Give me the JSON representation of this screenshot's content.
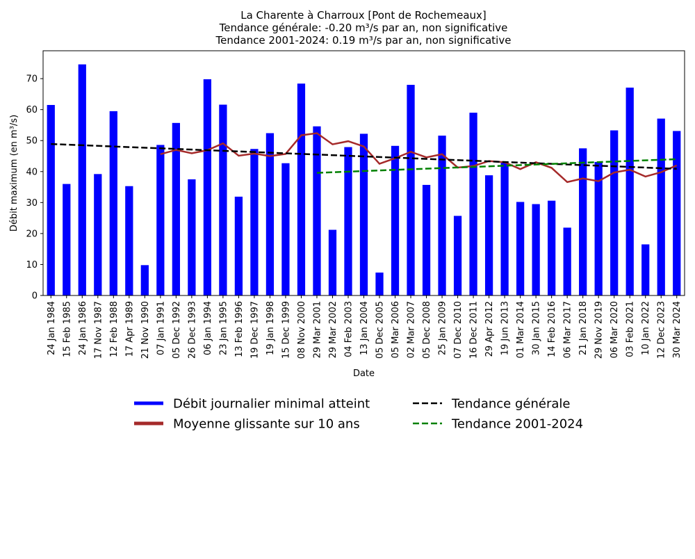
{
  "chart_data": {
    "type": "bar",
    "title_lines": [
      "La Charente à Charroux [Pont de Rochemeaux]",
      "Tendance générale: -0.20 m³/s par an, non significative",
      "Tendance 2001-2024: 0.19 m³/s par an, non significative"
    ],
    "xlabel": "Date",
    "ylabel": "Débit maximum (en m³/s)",
    "ylim": [
      0,
      79
    ],
    "yticks": [
      0,
      10,
      20,
      30,
      40,
      50,
      60,
      70
    ],
    "grid": false,
    "legend_position": "bottom-center",
    "categories": [
      "24 Jan 1984",
      "15 Feb 1985",
      "24 Jan 1986",
      "17 Nov 1987",
      "12 Feb 1988",
      "17 Apr 1989",
      "21 Nov 1990",
      "07 Jan 1991",
      "05 Dec 1992",
      "26 Dec 1993",
      "06 Jan 1994",
      "23 Jan 1995",
      "13 Feb 1996",
      "19 Dec 1997",
      "19 Jan 1998",
      "15 Dec 1999",
      "08 Nov 2000",
      "29 Mar 2001",
      "29 Mar 2002",
      "04 Feb 2003",
      "13 Jan 2004",
      "05 Dec 2005",
      "05 Mar 2006",
      "02 Mar 2007",
      "05 Dec 2008",
      "25 Jan 2009",
      "07 Dec 2010",
      "16 Dec 2011",
      "29 Apr 2012",
      "19 Jun 2013",
      "01 Mar 2014",
      "30 Jan 2015",
      "14 Feb 2016",
      "06 Mar 2017",
      "21 Jan 2018",
      "29 Nov 2019",
      "06 Mar 2020",
      "03 Feb 2021",
      "10 Jan 2022",
      "12 Dec 2023",
      "30 Mar 2024"
    ],
    "series": [
      {
        "name": "Débit journalier minimal atteint",
        "kind": "bar",
        "color": "#0000ff",
        "values": [
          61.5,
          36.0,
          74.6,
          39.2,
          59.5,
          35.3,
          9.8,
          48.6,
          55.7,
          37.5,
          69.8,
          61.6,
          31.9,
          47.3,
          52.4,
          42.7,
          68.4,
          54.6,
          21.2,
          47.9,
          52.2,
          7.4,
          48.3,
          68.0,
          35.7,
          51.6,
          25.7,
          59.0,
          38.8,
          43.0,
          30.2,
          29.5,
          30.6,
          21.9,
          47.5,
          43.1,
          53.3,
          67.1,
          16.5,
          57.1,
          53.1
        ]
      },
      {
        "name": "Moyenne glissante sur 10 ans",
        "kind": "line",
        "color": "#a52a2a",
        "style": "solid",
        "values": [
          null,
          null,
          null,
          null,
          null,
          null,
          null,
          45.6,
          47.0,
          45.9,
          46.9,
          49.1,
          45.1,
          45.8,
          45.0,
          45.7,
          51.7,
          52.4,
          48.8,
          49.8,
          48.1,
          42.5,
          44.3,
          46.4,
          44.6,
          45.6,
          41.3,
          41.8,
          43.4,
          43.0,
          40.8,
          43.0,
          41.2,
          36.6,
          37.8,
          36.9,
          39.7,
          40.6,
          38.4,
          39.8,
          42.0
        ]
      },
      {
        "name": "Tendance générale",
        "kind": "line",
        "color": "#000000",
        "style": "dashed",
        "from": 48.9,
        "to": 40.9
      },
      {
        "name": "Tendance 2001-2024",
        "kind": "line",
        "color": "#008000",
        "style": "dashed",
        "start_index": 17,
        "from": 39.6,
        "to": 44.0
      }
    ]
  }
}
